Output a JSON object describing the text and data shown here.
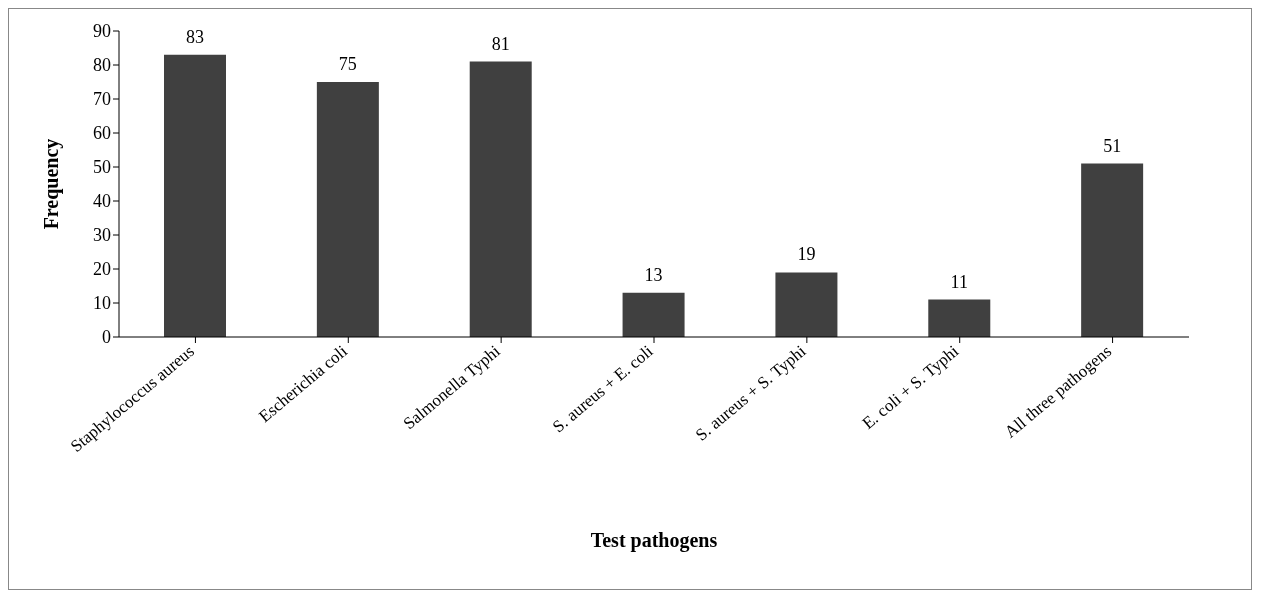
{
  "chart_data": {
    "type": "bar",
    "xlabel": "Test pathogens",
    "ylabel": "Frequency",
    "categories": [
      "Staphylococcus aureus",
      "Escherichia coli",
      "Salmonella Typhi",
      "S. aureus + E. coli",
      "S. aureus + S. Typhi",
      "E. coli + S. Typhi",
      "All three pathogens"
    ],
    "values": [
      83,
      75,
      81,
      13,
      19,
      11,
      51
    ],
    "color": "#404040",
    "ylim": [
      0,
      90
    ],
    "yticks": [
      0,
      10,
      20,
      30,
      40,
      50,
      60,
      70,
      80,
      90
    ],
    "grid": false,
    "legend": false,
    "data_labels": true
  }
}
